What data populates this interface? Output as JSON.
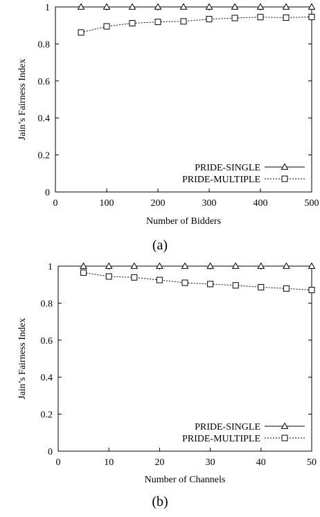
{
  "chart_data": [
    {
      "type": "line",
      "panel_label": "(a)",
      "xlabel": "Number of Bidders",
      "ylabel": "Jain’s Fairness Index",
      "xlim": [
        0,
        500
      ],
      "ylim": [
        0,
        1
      ],
      "xticks": [
        "0",
        "100",
        "200",
        "300",
        "400",
        "500"
      ],
      "yticks": [
        "0",
        "0.2",
        "0.4",
        "0.6",
        "0.8",
        "1"
      ],
      "x": [
        50,
        100,
        150,
        200,
        250,
        300,
        350,
        400,
        450,
        500
      ],
      "grid": false,
      "legend_position": "bottom-right",
      "series": [
        {
          "name": "PRIDE-SINGLE",
          "marker": "triangle",
          "line": "solid",
          "values": [
            1,
            1,
            1,
            1,
            1,
            1,
            1,
            1,
            1,
            1
          ]
        },
        {
          "name": "PRIDE-MULTIPLE",
          "marker": "square",
          "line": "dashed",
          "values": [
            0.862,
            0.895,
            0.912,
            0.919,
            0.922,
            0.934,
            0.94,
            0.945,
            0.942,
            0.946
          ]
        }
      ]
    },
    {
      "type": "line",
      "panel_label": "(b)",
      "xlabel": "Number of Channels",
      "ylabel": "Jain’s Fairness Index",
      "xlim": [
        0,
        50
      ],
      "ylim": [
        0,
        1
      ],
      "xticks": [
        "0",
        "10",
        "20",
        "30",
        "40",
        "50"
      ],
      "yticks": [
        "0",
        "0.2",
        "0.4",
        "0.6",
        "0.8",
        "1"
      ],
      "x": [
        5,
        10,
        15,
        20,
        25,
        30,
        35,
        40,
        45,
        50
      ],
      "grid": false,
      "legend_position": "bottom-right",
      "series": [
        {
          "name": "PRIDE-SINGLE",
          "marker": "triangle",
          "line": "solid",
          "values": [
            1,
            1,
            1,
            1,
            1,
            1,
            1,
            1,
            1,
            1
          ]
        },
        {
          "name": "PRIDE-MULTIPLE",
          "marker": "square",
          "line": "dashed",
          "values": [
            0.965,
            0.944,
            0.939,
            0.925,
            0.91,
            0.903,
            0.896,
            0.886,
            0.879,
            0.871
          ]
        }
      ]
    }
  ]
}
